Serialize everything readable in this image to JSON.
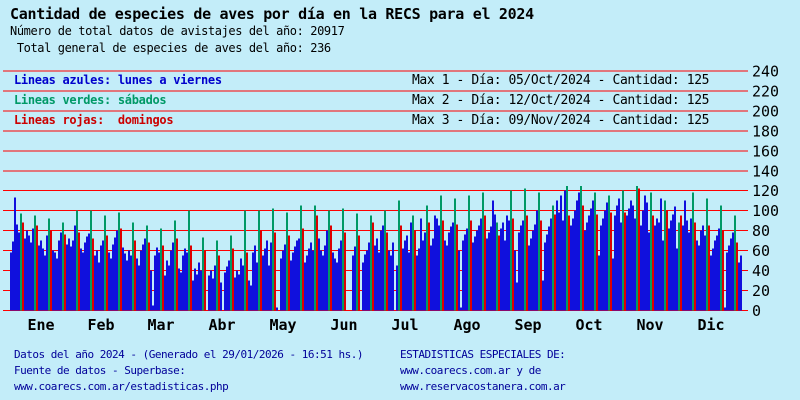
{
  "title": "Cantidad de especies de aves por día en la RECS para el 2024",
  "subtitle_records": "Número de total datos de avistajes del año: 20917",
  "subtitle_species": " Total general de especies de aves del año: 236",
  "legend": {
    "rows": [
      {
        "label": "Lineas azules: lunes a viernes",
        "color": "#0000cc",
        "max": "Max 1 - Día: 05/Oct/2024 - Cantidad: 125"
      },
      {
        "label": "Lineas verdes: sábados",
        "color": "#009966",
        "max": "Max 2 - Día: 12/Oct/2024 - Cantidad: 125"
      },
      {
        "label": "Lineas rojas:  domingos",
        "color": "#cc0000",
        "max": "Max 3 - Día: 09/Nov/2024 - Cantidad: 125"
      }
    ]
  },
  "footer": {
    "left": [
      "Datos del año 2024 - (Generado el 29/01/2026 - 16:51 hs.)",
      "Fuente de datos - Superbase:",
      "www.coarecs.com.ar/estadisticas.php"
    ],
    "right": [
      "ESTADISTICAS ESPECIALES DE:",
      "www.coarecs.com.ar y de",
      "www.reservacostanera.com.ar"
    ],
    "color": "#000099"
  },
  "colors": {
    "background": "#c3edf9",
    "bar_weekday_blue": "#1010dd",
    "bar_saturday_green": "#009966",
    "bar_sunday_red": "#dd0000",
    "gridline_red": "#ff0000",
    "axis_text": "#000000"
  },
  "chart_data": {
    "type": "bar",
    "title": "Cantidad de especies de aves por día en la RECS para el 2024",
    "xlabel": "",
    "ylabel": "",
    "ylim": [
      0,
      240
    ],
    "yticks": [
      0,
      20,
      40,
      60,
      80,
      100,
      120,
      140,
      160,
      180,
      200,
      220,
      240
    ],
    "grid": "horizontal-red-lines",
    "legend_position": "top-left-rows",
    "series_rule": "one bar per day of 2024; weekdays blue, Saturdays green, Sundays red; 2024-01-01 is a Monday",
    "jan1_weekday": "Monday",
    "months": [
      {
        "label": "Ene",
        "days": 31
      },
      {
        "label": "Feb",
        "days": 29
      },
      {
        "label": "Mar",
        "days": 31
      },
      {
        "label": "Abr",
        "days": 30
      },
      {
        "label": "May",
        "days": 31
      },
      {
        "label": "Jun",
        "days": 30
      },
      {
        "label": "Jul",
        "days": 31
      },
      {
        "label": "Ago",
        "days": 31
      },
      {
        "label": "Sep",
        "days": 30
      },
      {
        "label": "Oct",
        "days": 31
      },
      {
        "label": "Nov",
        "days": 30
      },
      {
        "label": "Dic",
        "days": 31
      }
    ],
    "maxima": [
      {
        "rank": 1,
        "date": "05/Oct/2024",
        "count": 125
      },
      {
        "rank": 2,
        "date": "12/Oct/2024",
        "count": 125
      },
      {
        "rank": 3,
        "date": "09/Nov/2024",
        "count": 125
      }
    ],
    "daily_values_by_month": [
      [
        58,
        69,
        113,
        86,
        78,
        97,
        88,
        72,
        80,
        75,
        68,
        82,
        95,
        85,
        65,
        70,
        62,
        55,
        75,
        92,
        80,
        60,
        58,
        52,
        70,
        78,
        88,
        76,
        66,
        72,
        64
      ],
      [
        70,
        85,
        100,
        78,
        62,
        58,
        68,
        74,
        77,
        100,
        72,
        55,
        60,
        48,
        65,
        70,
        95,
        75,
        58,
        52,
        66,
        73,
        80,
        98,
        82,
        63,
        57,
        50,
        60
      ],
      [
        55,
        88,
        70,
        52,
        45,
        60,
        66,
        72,
        85,
        68,
        40,
        5,
        55,
        63,
        58,
        82,
        65,
        35,
        50,
        45,
        60,
        68,
        90,
        72,
        42,
        38,
        55,
        62,
        58,
        100,
        65
      ],
      [
        30,
        42,
        36,
        48,
        40,
        73,
        60,
        0,
        35,
        40,
        32,
        45,
        70,
        55,
        28,
        0,
        38,
        44,
        50,
        75,
        62,
        33,
        40,
        36,
        52,
        45,
        100,
        58,
        30,
        25
      ],
      [
        58,
        65,
        48,
        100,
        80,
        55,
        62,
        70,
        45,
        68,
        102,
        78,
        3,
        0,
        52,
        60,
        66,
        98,
        75,
        50,
        58,
        64,
        70,
        72,
        105,
        82,
        48,
        55,
        62,
        68,
        60
      ],
      [
        105,
        95,
        72,
        60,
        55,
        65,
        80,
        100,
        85,
        58,
        52,
        48,
        62,
        70,
        102,
        78,
        0,
        0,
        0,
        55,
        64,
        97,
        75,
        0,
        48,
        56,
        60,
        68,
        95,
        88
      ],
      [
        65,
        72,
        58,
        80,
        85,
        100,
        78,
        60,
        55,
        68,
        0,
        45,
        110,
        85,
        62,
        70,
        75,
        58,
        88,
        95,
        80,
        55,
        62,
        92,
        70,
        78,
        105,
        88,
        65,
        72,
        95
      ],
      [
        92,
        85,
        115,
        90,
        70,
        65,
        78,
        84,
        88,
        112,
        86,
        60,
        3,
        70,
        76,
        82,
        115,
        90,
        68,
        74,
        80,
        85,
        92,
        118,
        95,
        72,
        78,
        84,
        110,
        96,
        88
      ],
      [
        75,
        82,
        88,
        70,
        95,
        90,
        120,
        92,
        60,
        28,
        78,
        85,
        90,
        122,
        95,
        65,
        72,
        80,
        86,
        100,
        118,
        90,
        30,
        68,
        76,
        84,
        92,
        105,
        96,
        110
      ],
      [
        98,
        115,
        90,
        120,
        125,
        95,
        85,
        92,
        100,
        110,
        118,
        125,
        105,
        80,
        88,
        95,
        102,
        110,
        118,
        96,
        55,
        85,
        92,
        100,
        108,
        115,
        98,
        52,
        95,
        105,
        112
      ],
      [
        88,
        120,
        98,
        95,
        102,
        110,
        105,
        92,
        125,
        122,
        85,
        100,
        115,
        108,
        78,
        118,
        95,
        85,
        92,
        88,
        112,
        70,
        110,
        100,
        82,
        90,
        96,
        104,
        62,
        88
      ],
      [
        95,
        85,
        110,
        90,
        78,
        92,
        118,
        88,
        70,
        65,
        80,
        85,
        75,
        112,
        85,
        55,
        62,
        70,
        75,
        82,
        105,
        80,
        3,
        58,
        65,
        72,
        78,
        95,
        68,
        48,
        55
      ]
    ]
  }
}
